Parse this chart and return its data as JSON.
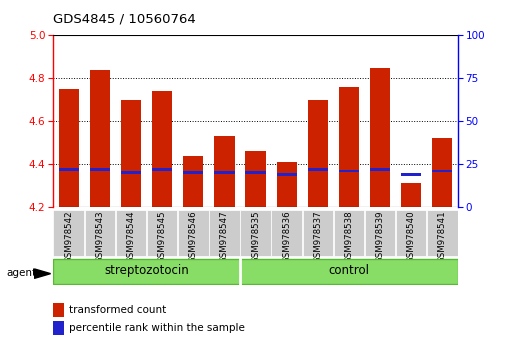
{
  "title": "GDS4845 / 10560764",
  "samples": [
    "GSM978542",
    "GSM978543",
    "GSM978544",
    "GSM978545",
    "GSM978546",
    "GSM978547",
    "GSM978535",
    "GSM978536",
    "GSM978537",
    "GSM978538",
    "GSM978539",
    "GSM978540",
    "GSM978541"
  ],
  "transformed_count": [
    4.75,
    4.84,
    4.7,
    4.74,
    4.44,
    4.53,
    4.46,
    4.41,
    4.7,
    4.76,
    4.85,
    4.31,
    4.52
  ],
  "percentile_rank": [
    22,
    22,
    20,
    22,
    20,
    20,
    20,
    19,
    22,
    21,
    22,
    19,
    21
  ],
  "bar_bottom": 4.2,
  "ylim_left": [
    4.2,
    5.0
  ],
  "ylim_right": [
    0,
    100
  ],
  "yticks_left": [
    4.2,
    4.4,
    4.6,
    4.8,
    5.0
  ],
  "yticks_right": [
    0,
    25,
    50,
    75,
    100
  ],
  "bar_color": "#cc2200",
  "percentile_color": "#2222cc",
  "group_color": "#88dd66",
  "group_edge_color": "#55bb33",
  "groups": [
    {
      "label": "streptozotocin",
      "start": 0,
      "end": 5
    },
    {
      "label": "control",
      "start": 6,
      "end": 12
    }
  ],
  "legend_red_label": "transformed count",
  "legend_blue_label": "percentile rank within the sample",
  "tick_bg_color": "#cccccc",
  "bar_width": 0.65,
  "figsize": [
    5.06,
    3.54
  ],
  "dpi": 100
}
